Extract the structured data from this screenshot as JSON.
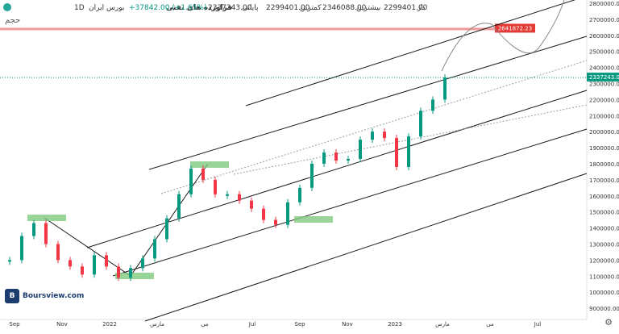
{
  "header": {
    "symbol": "فراورده های نفتی",
    "interval": "1D",
    "exchange": "بورس ایران",
    "open_label": "باز",
    "open": "2299401.00",
    "high_label": "بیشترین",
    "high": "2346088.00",
    "low_label": "کمترین",
    "low": "2299401.00",
    "close_label": "پایانی",
    "close": "2337243.00",
    "change": "+37842.00 (+1.65%)",
    "hidden_label": "حجم"
  },
  "watermark": {
    "logo": "B",
    "text": "Boursview.com"
  },
  "colors": {
    "up": "#089981",
    "down": "#f23645",
    "channel": "#1a1a1a",
    "dotted": "#9aa0a6",
    "box": "#7fc97f",
    "resistance": "#f08080",
    "price_tag": "#089981",
    "res_tag": "#e53935"
  },
  "chart_data": {
    "type": "line",
    "title": "",
    "xlabel": "",
    "ylabel": "",
    "ylim": [
      830000,
      2820000
    ],
    "y_ticks": [
      900000,
      1000000,
      1100000,
      1200000,
      1300000,
      1400000,
      1500000,
      1600000,
      1700000,
      1800000,
      1900000,
      2000000,
      2100000,
      2200000,
      2300000,
      2400000,
      2500000,
      2600000,
      2700000,
      2800000
    ],
    "x_tick_labels": [
      "Sep",
      "Nov",
      "2022",
      "مارس",
      "می",
      "Jul",
      "Sep",
      "Nov",
      "2023",
      "مارس",
      "می",
      "Jul"
    ],
    "last_price": 2337243.0,
    "resistance_level": 2641872.23,
    "series": [
      {
        "x": [
          0,
          15,
          30,
          45,
          60,
          75,
          90,
          105,
          120,
          135,
          150,
          165,
          180,
          195,
          210,
          225,
          240,
          255,
          270,
          285,
          300,
          315,
          330,
          345,
          360,
          375,
          390,
          405,
          420,
          435,
          450,
          465,
          480,
          495,
          510,
          525,
          540
        ],
        "values": [
          1200000,
          1350000,
          1430000,
          1300000,
          1200000,
          1160000,
          1110000,
          1230000,
          1160000,
          1090000,
          1150000,
          1210000,
          1330000,
          1460000,
          1610000,
          1770000,
          1700000,
          1610000,
          1610000,
          1570000,
          1520000,
          1450000,
          1420000,
          1560000,
          1650000,
          1800000,
          1870000,
          1820000,
          1830000,
          1950000,
          2000000,
          1960000,
          1780000,
          1970000,
          2130000,
          2200000,
          2337243
        ]
      }
    ]
  }
}
